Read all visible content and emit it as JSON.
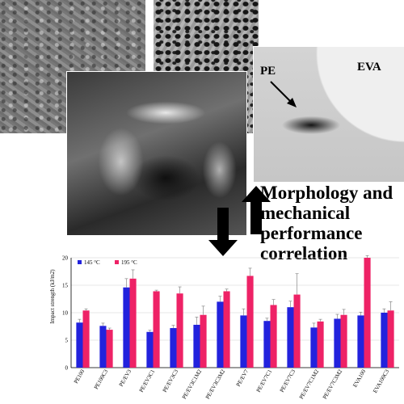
{
  "title": {
    "lines": [
      "Morphology and",
      "mechanical",
      "performance",
      "correlation"
    ]
  },
  "micrograph": {
    "label_pe": "PE",
    "label_eva": "EVA"
  },
  "colors": {
    "series_145": "#2222dd",
    "series_195": "#ee2266"
  },
  "chart_data": {
    "type": "bar",
    "title": "",
    "xlabel": "",
    "ylabel": "Impact strength (kJ/m2)",
    "ylim": [
      0,
      20
    ],
    "yticks": [
      0,
      5,
      10,
      15,
      20
    ],
    "grid": true,
    "legend_position": "top-left",
    "categories": [
      "PE100",
      "PE100C3",
      "PE/EV3",
      "PE/EV3C1",
      "PE/EV3C3",
      "PE/EV3C1M2",
      "PE/EV3C3M2",
      "PE/EV7",
      "PE/EV7C1",
      "PE/EV7C3",
      "PE/EV7C1M2",
      "PE/EV7C3M2",
      "EVA100",
      "EVA100C3"
    ],
    "series": [
      {
        "name": "145 °C",
        "color": "#2222dd",
        "values": [
          8.2,
          7.6,
          14.6,
          6.5,
          7.2,
          7.8,
          12.0,
          9.5,
          8.5,
          11.0,
          7.3,
          8.9,
          9.5,
          10.0
        ],
        "errors": [
          0.6,
          0.5,
          1.6,
          0.3,
          0.5,
          1.4,
          1.0,
          1.2,
          0.5,
          1.1,
          0.8,
          0.8,
          0.6,
          0.7
        ]
      },
      {
        "name": "195 °C",
        "color": "#ee2266",
        "values": [
          10.4,
          6.9,
          16.2,
          13.9,
          13.5,
          9.6,
          13.9,
          16.7,
          11.4,
          13.3,
          8.4,
          9.6,
          20.0,
          10.4
        ],
        "errors": [
          0.3,
          0.3,
          1.6,
          0.2,
          1.2,
          1.6,
          0.4,
          1.4,
          1.0,
          3.8,
          0.4,
          1.0,
          0.4,
          1.6
        ]
      }
    ]
  }
}
